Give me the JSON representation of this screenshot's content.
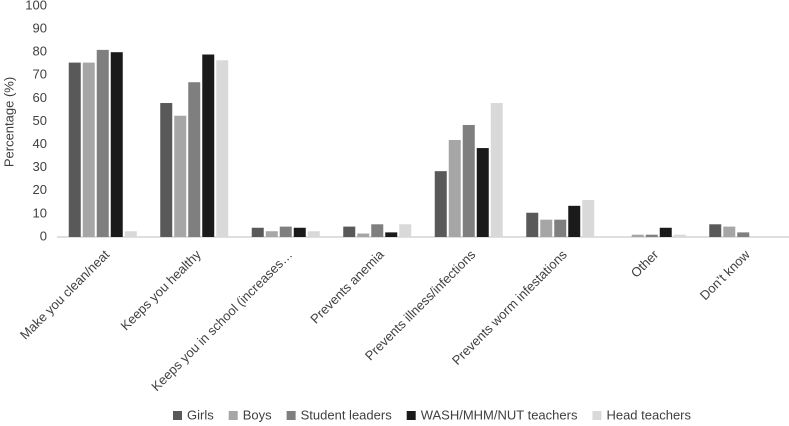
{
  "chart_data": {
    "type": "bar",
    "y_label": "Percentage (%)",
    "categories": [
      "Make you clean/neat",
      "Keeps you healthy",
      "Keeps you in school (increases…",
      "Prevents anemia",
      "Prevents illness/infections",
      "Prevents worm infestations",
      "Other",
      "Don’t know"
    ],
    "series": [
      {
        "name": "Girls",
        "color": "#595959",
        "values": [
          75.5,
          58,
          4,
          4.5,
          28.5,
          10.5,
          0,
          5.5
        ]
      },
      {
        "name": "Boys",
        "color": "#a6a6a6",
        "values": [
          75.5,
          52.5,
          2.5,
          1.5,
          42,
          7.5,
          1,
          4.5
        ]
      },
      {
        "name": "Student leaders",
        "color": "#7f7f7f",
        "values": [
          81,
          67,
          4.5,
          5.5,
          48.5,
          7.5,
          1,
          2
        ]
      },
      {
        "name": "WASH/MHM/NUT teachers",
        "color": "#1a1a1a",
        "values": [
          80,
          79,
          4,
          2,
          38.5,
          13.5,
          4,
          0
        ]
      },
      {
        "name": "Head teachers",
        "color": "#d9d9d9",
        "values": [
          2.5,
          76.5,
          2.5,
          5.5,
          58,
          16,
          1,
          0
        ]
      }
    ],
    "ylim": [
      0,
      100
    ],
    "yticks": [
      0,
      10,
      20,
      30,
      40,
      50,
      60,
      70,
      80,
      90,
      100
    ],
    "grid": false,
    "legend": "bottom"
  }
}
